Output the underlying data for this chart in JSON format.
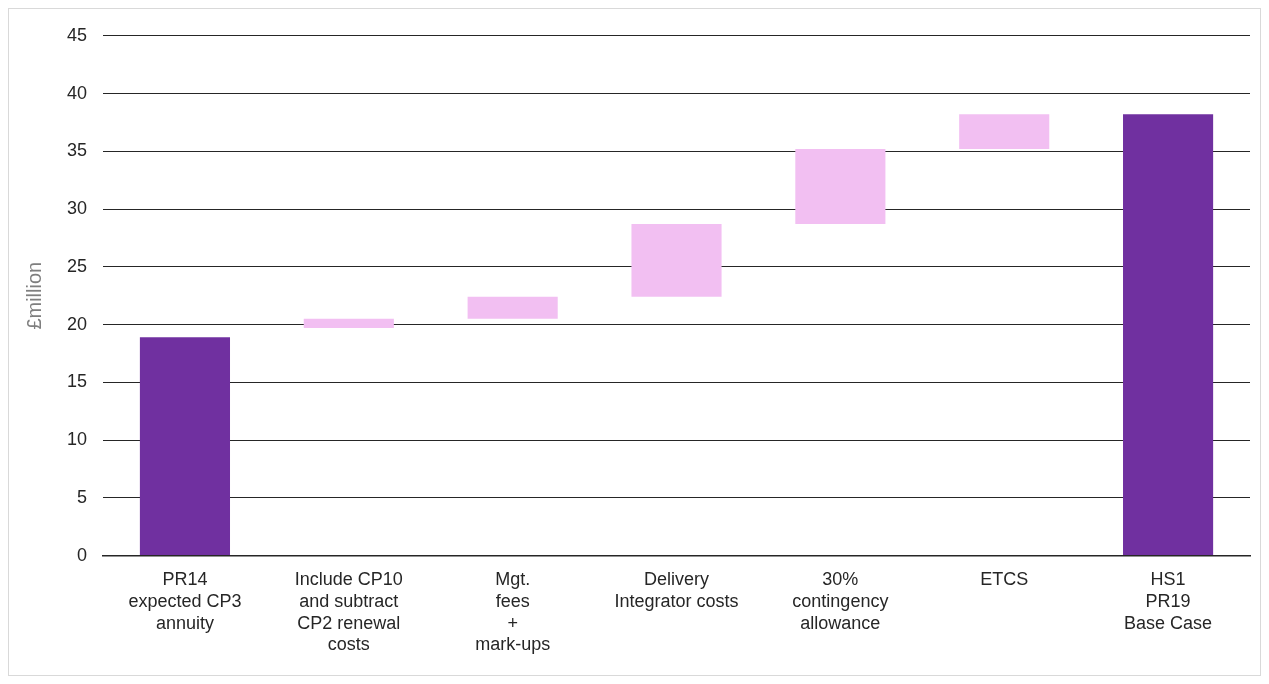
{
  "chart_data": {
    "type": "bar",
    "ylabel": "£million",
    "categories": [
      "PR14\nexpected CP3\nannuity",
      "Include CP10\nand subtract\nCP2 renewal\ncosts",
      "Mgt.\nfees\n+\nmark-ups",
      "Delivery\nIntegrator costs",
      "30%\ncontingency\nallowance",
      "ETCS",
      "HS1\nPR19\nBase Case"
    ],
    "values": [
      18.9,
      0.8,
      1.9,
      6.3,
      6.5,
      3.0,
      38.2
    ],
    "base": [
      0,
      19.7,
      20.5,
      22.4,
      28.7,
      35.2,
      0
    ],
    "colors": [
      "#7030a0",
      "#f2bff2",
      "#f2bff2",
      "#f2bff2",
      "#f2bff2",
      "#f2bff2",
      "#7030a0"
    ],
    "ylim": [
      0,
      45
    ],
    "yticks": [
      0,
      5,
      10,
      15,
      20,
      25,
      30,
      35,
      40,
      45
    ],
    "grid": "y",
    "legend": false
  }
}
